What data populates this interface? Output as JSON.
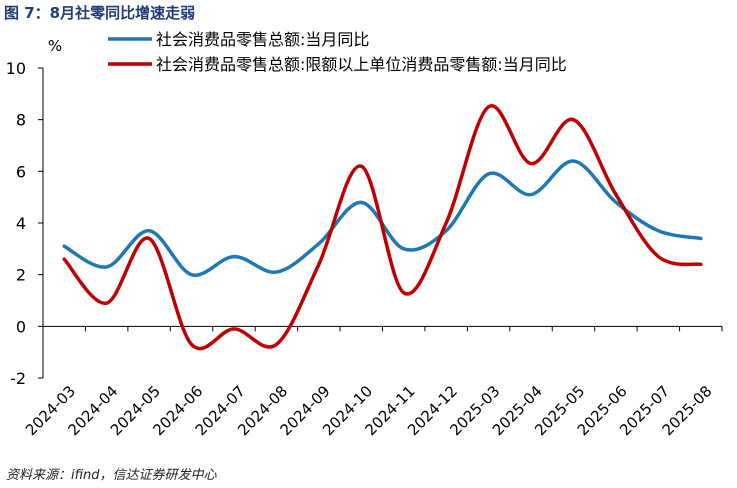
{
  "figure": {
    "title": "图 7：8月社零同比增速走弱",
    "source": "资料来源：ifind，信达证券研发中心"
  },
  "chart_data": {
    "type": "line",
    "ylabel": "%",
    "ylim": [
      -2,
      10
    ],
    "yticks": [
      -2,
      0,
      2,
      4,
      6,
      8,
      10
    ],
    "categories": [
      "2024-03",
      "2024-04",
      "2024-05",
      "2024-06",
      "2024-07",
      "2024-08",
      "2024-09",
      "2024-10",
      "2024-11",
      "2024-12",
      "2025-03",
      "2025-04",
      "2025-05",
      "2025-06",
      "2025-07",
      "2025-08"
    ],
    "grid": false,
    "legend": "top",
    "series": [
      {
        "name": "社会消费品零售总额:当月同比",
        "color": "#1f77b4",
        "values": [
          3.1,
          2.3,
          3.7,
          2.0,
          2.7,
          2.1,
          3.2,
          4.8,
          3.0,
          3.7,
          5.9,
          5.1,
          6.4,
          4.8,
          3.7,
          3.4
        ]
      },
      {
        "name": "社会消费品零售总额:限额以上单位消费品零售额:当月同比",
        "color": "#c00000",
        "values": [
          2.6,
          0.9,
          3.4,
          -0.7,
          -0.1,
          -0.7,
          2.4,
          6.2,
          1.3,
          4.0,
          8.5,
          6.3,
          8.0,
          5.1,
          2.7,
          2.4
        ]
      }
    ]
  }
}
